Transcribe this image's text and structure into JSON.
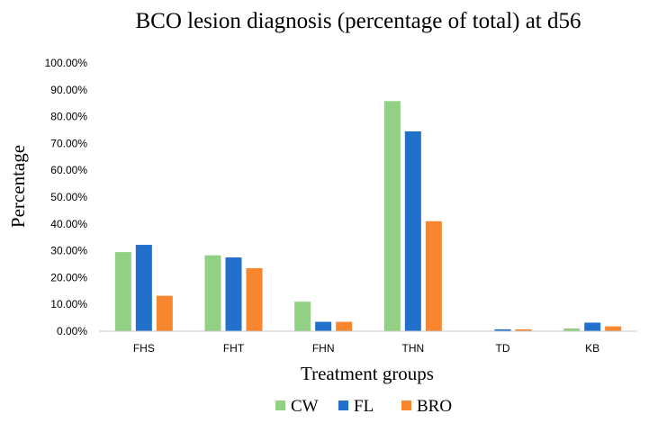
{
  "chart_data": {
    "type": "bar",
    "title": "BCO lesion diagnosis (percentage of total) at d56",
    "xlabel": "Treatment groups",
    "ylabel": "Percentage",
    "categories": [
      "FHS",
      "FHT",
      "FHN",
      "THN",
      "TD",
      "KB"
    ],
    "series": [
      {
        "name": "CW",
        "color": "#92d084",
        "values": [
          29.5,
          28.3,
          11.0,
          85.8,
          0.0,
          1.0
        ]
      },
      {
        "name": "FL",
        "color": "#2070cc",
        "values": [
          32.2,
          27.5,
          3.5,
          74.5,
          0.7,
          3.2
        ]
      },
      {
        "name": "BRO",
        "color": "#f7862f",
        "values": [
          13.2,
          23.5,
          3.5,
          41.0,
          0.7,
          1.8
        ]
      }
    ],
    "ylim": [
      0,
      100
    ],
    "yticks": [
      0,
      10,
      20,
      30,
      40,
      50,
      60,
      70,
      80,
      90,
      100
    ],
    "ytick_labels": [
      "0.00%",
      "10.00%",
      "20.00%",
      "30.00%",
      "40.00%",
      "50.00%",
      "60.00%",
      "70.00%",
      "80.00%",
      "90.00%",
      "100.00%"
    ],
    "grid": false,
    "legend": "bottom"
  }
}
